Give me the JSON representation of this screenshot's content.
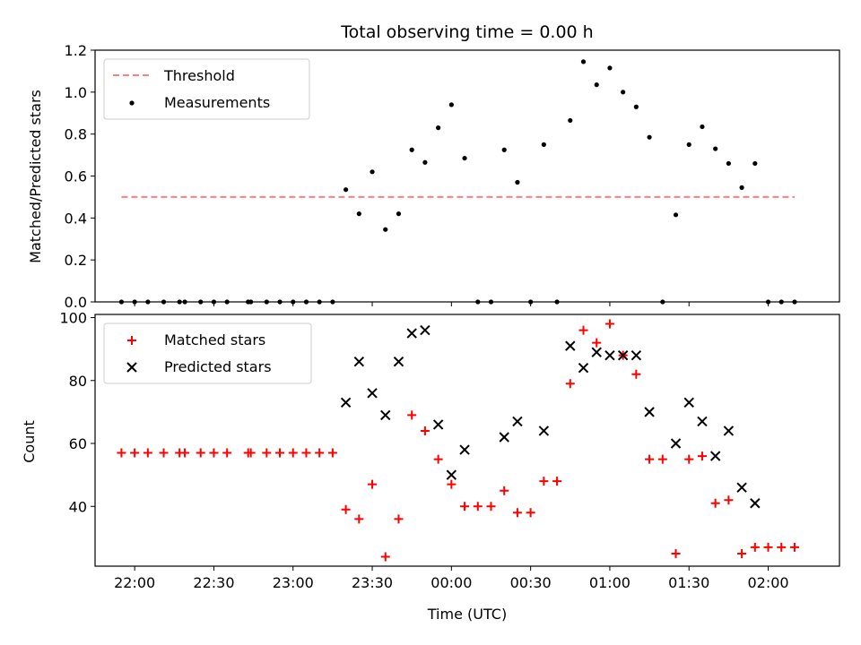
{
  "chart_data": [
    {
      "type": "scatter",
      "title": "Total observing time = 0.00 h",
      "xlabel": "",
      "ylabel": "Matched/Predicted stars",
      "ylim": [
        0,
        1.2
      ],
      "yticks": [
        "0.0",
        "0.2",
        "0.4",
        "0.6",
        "0.8",
        "1.0",
        "1.2"
      ],
      "xlim": [
        "21:45",
        "02:27"
      ],
      "legend_position": "upper-left",
      "legend": [
        "Threshold",
        "Measurements"
      ],
      "colors": {
        "threshold": "#ff7f7f",
        "measurements": "#000000"
      },
      "threshold": {
        "name": "Threshold",
        "value": 0.5,
        "x": [
          "21:55",
          "02:10"
        ]
      },
      "series": [
        {
          "name": "Measurements",
          "x": [
            "21:55",
            "22:00",
            "22:05",
            "22:11",
            "22:17",
            "22:19",
            "22:25",
            "22:30",
            "22:35",
            "22:43",
            "22:44",
            "22:50",
            "22:55",
            "23:00",
            "23:05",
            "23:10",
            "23:15",
            "23:20",
            "23:25",
            "23:30",
            "23:35",
            "23:40",
            "23:45",
            "23:50",
            "23:55",
            "00:00",
            "00:05",
            "00:10",
            "00:15",
            "00:20",
            "00:25",
            "00:30",
            "00:35",
            "00:40",
            "00:45",
            "00:50",
            "00:55",
            "01:00",
            "01:05",
            "01:10",
            "01:15",
            "01:20",
            "01:25",
            "01:30",
            "01:35",
            "01:40",
            "01:45",
            "01:50",
            "01:55",
            "02:00",
            "02:05",
            "02:10"
          ],
          "y": [
            0,
            0,
            0,
            0,
            0,
            0,
            0,
            0,
            0,
            0,
            0,
            0,
            0,
            0,
            0,
            0,
            0,
            0.535,
            0.42,
            0.62,
            0.345,
            0.42,
            0.725,
            0.665,
            0.83,
            0.94,
            0.685,
            0,
            0,
            0.725,
            0.57,
            0,
            0.75,
            0,
            0.865,
            1.145,
            1.035,
            1.115,
            1.0,
            0.93,
            0.785,
            0,
            0.415,
            0.75,
            0.835,
            0.73,
            0.66,
            0.545,
            0.66,
            0,
            0,
            0
          ]
        }
      ]
    },
    {
      "type": "scatter",
      "title": "",
      "xlabel": "Time (UTC)",
      "ylabel": "Count",
      "ylim": [
        21,
        101
      ],
      "yticks": [
        "40",
        "60",
        "80",
        "100"
      ],
      "xlim": [
        "21:45",
        "02:27"
      ],
      "xticks": [
        "22:00",
        "22:30",
        "23:00",
        "23:30",
        "00:00",
        "00:30",
        "01:00",
        "01:30",
        "02:00"
      ],
      "legend_position": "upper-left",
      "legend": [
        "Matched stars",
        "Predicted stars"
      ],
      "colors": {
        "matched": "#ff0000",
        "predicted": "#000000"
      },
      "series": [
        {
          "name": "Matched stars",
          "x": [
            "21:55",
            "22:00",
            "22:05",
            "22:11",
            "22:17",
            "22:19",
            "22:25",
            "22:30",
            "22:35",
            "22:43",
            "22:44",
            "22:50",
            "22:55",
            "23:00",
            "23:05",
            "23:10",
            "23:15",
            "23:20",
            "23:25",
            "23:30",
            "23:35",
            "23:40",
            "23:45",
            "23:50",
            "23:55",
            "00:00",
            "00:05",
            "00:10",
            "00:15",
            "00:20",
            "00:25",
            "00:30",
            "00:35",
            "00:40",
            "00:45",
            "00:50",
            "00:55",
            "01:00",
            "01:05",
            "01:10",
            "01:15",
            "01:20",
            "01:25",
            "01:30",
            "01:35",
            "01:40",
            "01:45",
            "01:50",
            "01:55",
            "02:00",
            "02:05",
            "02:10"
          ],
          "y": [
            57,
            57,
            57,
            57,
            57,
            57,
            57,
            57,
            57,
            57,
            57,
            57,
            57,
            57,
            57,
            57,
            57,
            39,
            36,
            47,
            24,
            36,
            69,
            64,
            55,
            47,
            40,
            40,
            40,
            45,
            38,
            38,
            48,
            48,
            79,
            96,
            92,
            98,
            88,
            82,
            55,
            55,
            25,
            55,
            56,
            41,
            42,
            25,
            27,
            27,
            27,
            27
          ]
        },
        {
          "name": "Predicted stars",
          "x": [
            "23:20",
            "23:25",
            "23:30",
            "23:35",
            "23:40",
            "23:45",
            "23:50",
            "23:55",
            "00:00",
            "00:05",
            "00:20",
            "00:25",
            "00:35",
            "00:45",
            "00:50",
            "00:55",
            "01:00",
            "01:05",
            "01:10",
            "01:15",
            "01:25",
            "01:30",
            "01:35",
            "01:40",
            "01:45",
            "01:50",
            "01:55"
          ],
          "y": [
            73,
            86,
            76,
            69,
            86,
            95,
            96,
            66,
            50,
            58,
            62,
            67,
            64,
            91,
            84,
            89,
            88,
            88,
            88,
            70,
            60,
            73,
            67,
            56,
            64,
            46,
            41
          ]
        }
      ]
    }
  ]
}
